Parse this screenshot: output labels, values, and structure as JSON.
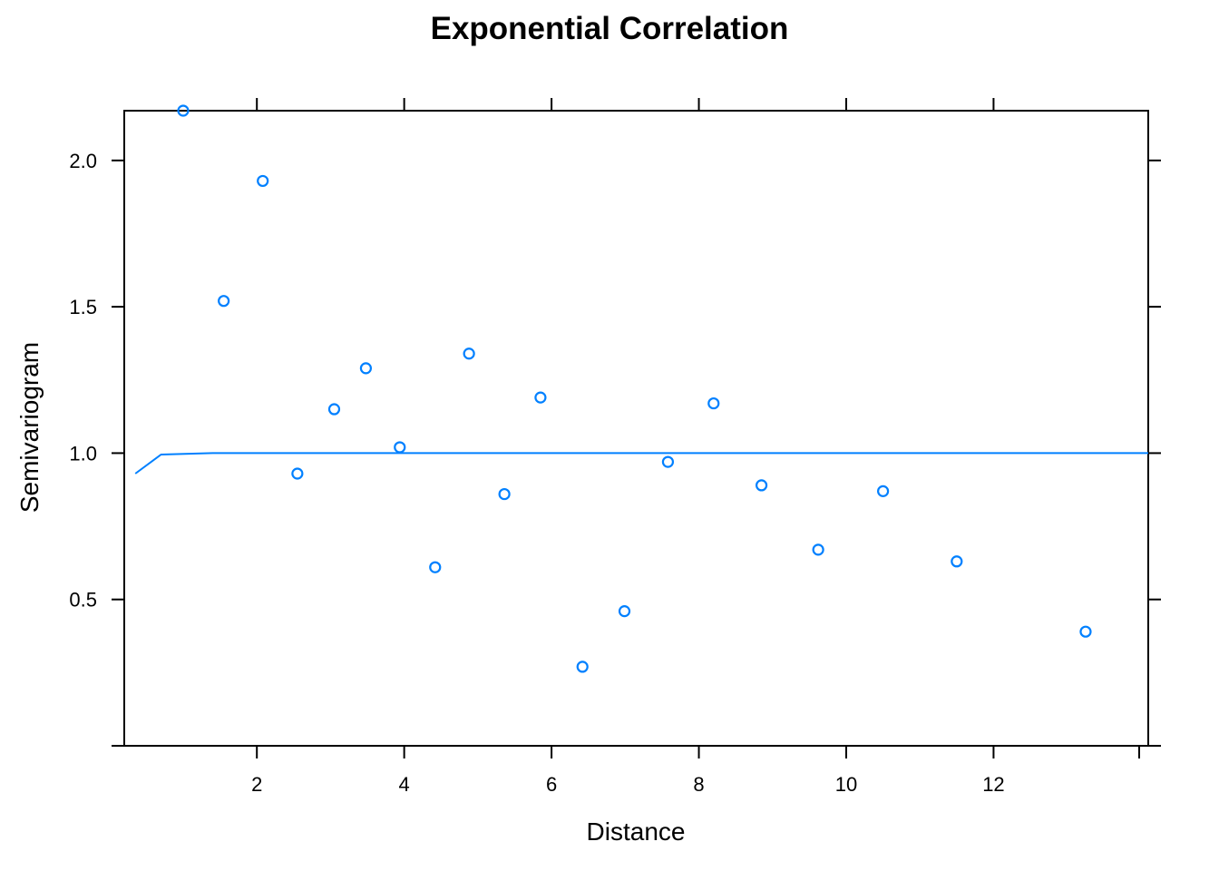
{
  "chart_data": {
    "type": "scatter",
    "title": "Exponential Correlation",
    "xlabel": "Distance",
    "ylabel": "Semivariogram",
    "xlim": [
      0.2,
      14.1
    ],
    "ylim": [
      0.0,
      2.17
    ],
    "xticks": [
      2,
      4,
      6,
      8,
      10,
      12
    ],
    "yticks": [
      0.5,
      1.0,
      1.5,
      2.0
    ],
    "xtick_labels": [
      "2",
      "4",
      "6",
      "8",
      "10",
      "12"
    ],
    "ytick_labels": [
      "0.5",
      "1.0",
      "1.5",
      "2.0"
    ],
    "grid": false,
    "colors": {
      "points": "#0080ff",
      "line": "#0080ff",
      "axes": "#000000"
    },
    "points": {
      "x": [
        1.0,
        1.55,
        2.08,
        2.55,
        3.05,
        3.48,
        3.94,
        4.42,
        4.88,
        5.36,
        5.85,
        6.42,
        6.99,
        7.58,
        8.2,
        8.85,
        9.62,
        10.5,
        11.5,
        13.25
      ],
      "y": [
        2.17,
        1.52,
        1.93,
        0.93,
        1.15,
        1.29,
        1.02,
        0.61,
        1.34,
        0.86,
        1.19,
        0.27,
        0.46,
        0.97,
        1.17,
        0.89,
        0.67,
        0.87,
        0.63,
        0.39
      ]
    },
    "fitted_line": {
      "x": [
        0.35,
        0.7,
        1.4,
        2.5,
        5.0,
        10.0,
        14.1
      ],
      "y": [
        0.93,
        0.995,
        1.0,
        1.0,
        1.0,
        1.0,
        1.0
      ]
    }
  }
}
